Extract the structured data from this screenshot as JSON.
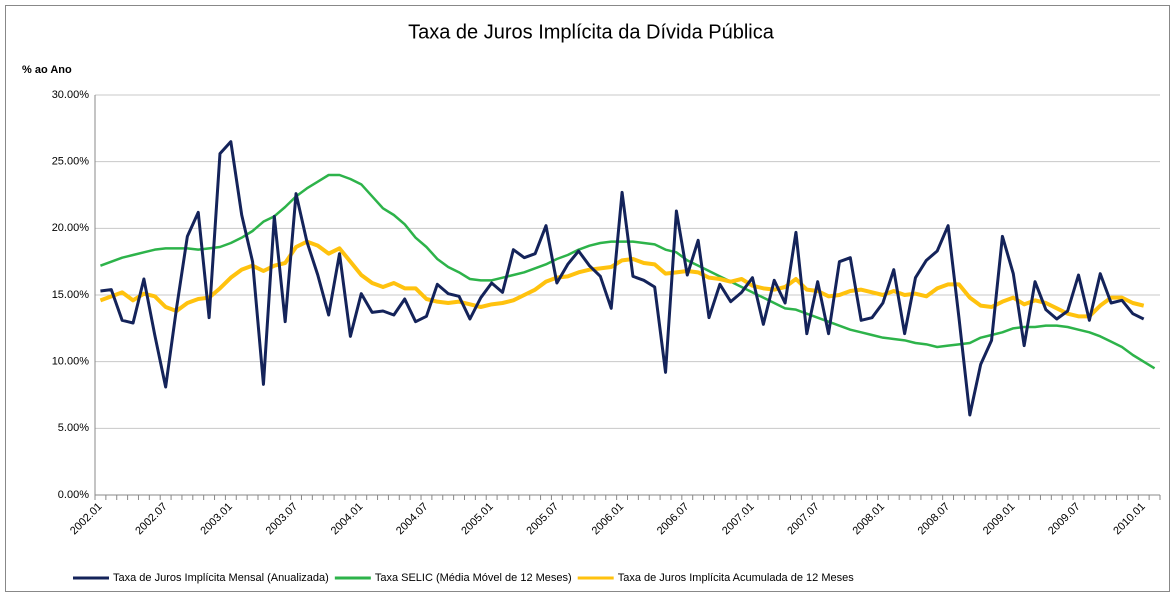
{
  "chart_data": {
    "type": "line",
    "title": "Taxa de Juros Implícita da Dívida Pública",
    "y_axis_label": "% ao Ano",
    "categories": [
      "2002.01",
      null,
      null,
      null,
      null,
      null,
      "2002.07",
      null,
      null,
      null,
      null,
      null,
      "2003.01",
      null,
      null,
      null,
      null,
      null,
      "2003.07",
      null,
      null,
      null,
      null,
      null,
      "2004.01",
      null,
      null,
      null,
      null,
      null,
      "2004.07",
      null,
      null,
      null,
      null,
      null,
      "2005.01",
      null,
      null,
      null,
      null,
      null,
      "2005.07",
      null,
      null,
      null,
      null,
      null,
      "2006.01",
      null,
      null,
      null,
      null,
      null,
      "2006.07",
      null,
      null,
      null,
      null,
      null,
      "2007.01",
      null,
      null,
      null,
      null,
      null,
      "2007.07",
      null,
      null,
      null,
      null,
      null,
      "2008.01",
      null,
      null,
      null,
      null,
      null,
      "2008.07",
      null,
      null,
      null,
      null,
      null,
      "2009.01",
      null,
      null,
      null,
      null,
      null,
      "2009.07",
      null,
      null,
      null,
      null,
      null,
      "2010.01",
      null
    ],
    "series": [
      {
        "name": "Taxa de Juros Implícita Mensal (Anualizada)",
        "color": "#14235a",
        "values": [
          15.3,
          15.4,
          13.1,
          12.9,
          16.2,
          12.0,
          8.1,
          14.0,
          19.4,
          21.2,
          13.3,
          25.6,
          26.5,
          21.0,
          17.5,
          8.3,
          20.9,
          13.0,
          22.6,
          19.0,
          16.5,
          13.5,
          18.1,
          11.9,
          15.1,
          13.7,
          13.8,
          13.5,
          14.7,
          13.0,
          13.4,
          15.8,
          15.1,
          14.9,
          13.2,
          14.8,
          15.9,
          15.2,
          18.4,
          17.8,
          18.1,
          20.2,
          15.9,
          17.3,
          18.3,
          17.2,
          16.4,
          14.0,
          22.7,
          16.4,
          16.1,
          15.6,
          9.2,
          21.3,
          16.5,
          19.1,
          13.3,
          15.8,
          14.5,
          15.2,
          16.3,
          12.8,
          16.1,
          14.4,
          19.7,
          12.1,
          16.0,
          12.1,
          17.5,
          17.8,
          13.1,
          13.3,
          14.4,
          16.9,
          12.1,
          16.3,
          17.6,
          18.3,
          20.2,
          13.3,
          6.0,
          9.8,
          11.6,
          19.4,
          16.6,
          11.2,
          16.0,
          13.9,
          13.2,
          13.8,
          16.5,
          13.1,
          16.6,
          14.4,
          14.6,
          13.6,
          13.2,
          null
        ]
      },
      {
        "name": "Taxa SELIC (Média Móvel de 12 Meses)",
        "color": "#2db34a",
        "values": [
          17.2,
          17.5,
          17.8,
          18.0,
          18.2,
          18.4,
          18.5,
          18.5,
          18.5,
          18.4,
          18.5,
          18.6,
          18.9,
          19.3,
          19.8,
          20.5,
          20.9,
          21.6,
          22.4,
          23.0,
          23.5,
          24.0,
          24.0,
          23.7,
          23.3,
          22.4,
          21.5,
          21.0,
          20.3,
          19.3,
          18.6,
          17.7,
          17.1,
          16.7,
          16.2,
          16.1,
          16.1,
          16.3,
          16.5,
          16.7,
          17.0,
          17.3,
          17.7,
          18.0,
          18.4,
          18.7,
          18.9,
          19.0,
          19.0,
          19.0,
          18.9,
          18.8,
          18.4,
          18.2,
          17.6,
          17.2,
          16.8,
          16.4,
          16.0,
          15.6,
          15.2,
          14.8,
          14.4,
          14.0,
          13.9,
          13.6,
          13.3,
          13.0,
          12.7,
          12.4,
          12.2,
          12.0,
          11.8,
          11.7,
          11.6,
          11.4,
          11.3,
          11.1,
          11.2,
          11.3,
          11.4,
          11.8,
          12.0,
          12.2,
          12.5,
          12.6,
          12.6,
          12.7,
          12.7,
          12.6,
          12.4,
          12.2,
          11.9,
          11.5,
          11.1,
          10.5,
          10.0,
          9.5
        ]
      },
      {
        "name": "Taxa de Juros Implícita Acumulada de 12 Meses",
        "color": "#ffc20e",
        "values": [
          14.6,
          14.9,
          15.2,
          14.6,
          15.1,
          14.9,
          14.1,
          13.8,
          14.4,
          14.7,
          14.8,
          15.5,
          16.3,
          16.9,
          17.2,
          16.8,
          17.2,
          17.4,
          18.6,
          19.0,
          18.7,
          18.1,
          18.5,
          17.5,
          16.5,
          15.9,
          15.6,
          15.9,
          15.5,
          15.5,
          14.7,
          14.5,
          14.4,
          14.5,
          14.3,
          14.1,
          14.3,
          14.4,
          14.6,
          15.0,
          15.4,
          16.0,
          16.3,
          16.4,
          16.7,
          16.9,
          17.0,
          17.1,
          17.6,
          17.7,
          17.4,
          17.3,
          16.6,
          16.7,
          16.8,
          16.7,
          16.3,
          16.2,
          16.0,
          16.2,
          15.7,
          15.5,
          15.4,
          15.6,
          16.2,
          15.4,
          15.3,
          14.9,
          15.0,
          15.3,
          15.4,
          15.2,
          15.0,
          15.3,
          15.0,
          15.1,
          14.9,
          15.5,
          15.8,
          15.8,
          14.8,
          14.2,
          14.1,
          14.5,
          14.8,
          14.3,
          14.6,
          14.4,
          14.0,
          13.6,
          13.4,
          13.4,
          14.2,
          14.8,
          14.8,
          14.4,
          14.2,
          null
        ]
      }
    ],
    "ylim": [
      0,
      30
    ],
    "yticks": [
      {
        "value": 0,
        "label": "0.00%"
      },
      {
        "value": 5,
        "label": "5.00%"
      },
      {
        "value": 10,
        "label": "10.00%"
      },
      {
        "value": 15,
        "label": "15.00%"
      },
      {
        "value": 20,
        "label": "20.00%"
      },
      {
        "value": 25,
        "label": "25.00%"
      },
      {
        "value": 30,
        "label": "30.00%"
      }
    ],
    "grid": true,
    "legend": "bottom"
  }
}
